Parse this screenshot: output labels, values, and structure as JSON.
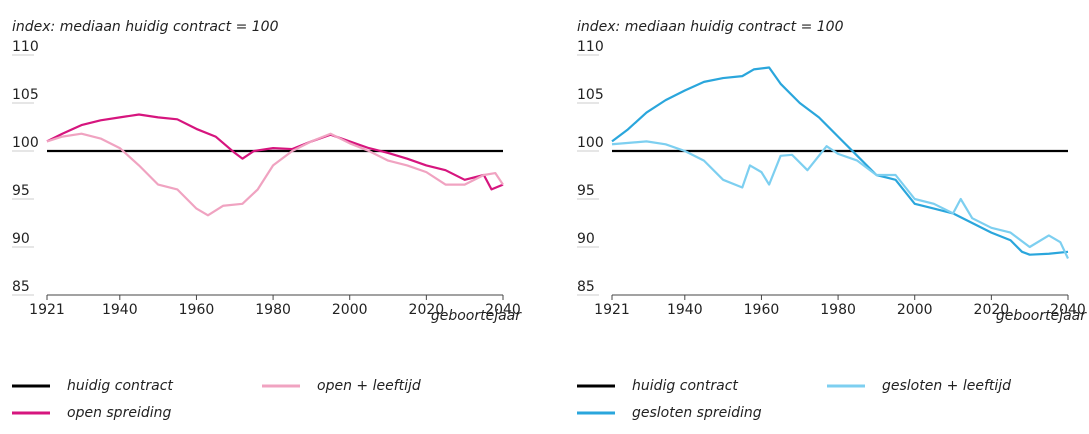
{
  "chart_data": [
    {
      "type": "line",
      "ylabel": "index: mediaan huidig contract = 100",
      "xlabel": "geboortejaar",
      "xlim": [
        1921,
        2040
      ],
      "xticks": [
        1921,
        1940,
        1960,
        1980,
        2000,
        2020,
        2040
      ],
      "ylim": [
        85,
        110
      ],
      "yticks": [
        85,
        90,
        95,
        100,
        105,
        110
      ],
      "grid": false,
      "series": [
        {
          "name": "huidig contract",
          "color": "#000000",
          "x": [
            1921,
            2040
          ],
          "values": [
            100,
            100
          ]
        },
        {
          "name": "open spreiding",
          "color": "#d6157e",
          "x": [
            1921,
            1925,
            1930,
            1935,
            1940,
            1945,
            1950,
            1955,
            1960,
            1965,
            1970,
            1972,
            1975,
            1980,
            1985,
            1990,
            1995,
            2000,
            2005,
            2010,
            2015,
            2020,
            2025,
            2030,
            2035,
            2037,
            2040
          ],
          "values": [
            101,
            101.8,
            102.7,
            103.2,
            103.5,
            103.8,
            103.5,
            103.3,
            102.3,
            101.5,
            99.8,
            99.2,
            100,
            100.3,
            100.2,
            101,
            101.7,
            101,
            100.3,
            99.8,
            99.2,
            98.5,
            98,
            97,
            97.5,
            96,
            96.5
          ]
        },
        {
          "name": "open + leeftijd",
          "color": "#f0a3c1",
          "x": [
            1921,
            1925,
            1930,
            1935,
            1940,
            1945,
            1950,
            1955,
            1960,
            1963,
            1967,
            1972,
            1976,
            1980,
            1985,
            1990,
            1995,
            2000,
            2005,
            2010,
            2015,
            2020,
            2025,
            2030,
            2035,
            2038,
            2040
          ],
          "values": [
            101,
            101.5,
            101.8,
            101.3,
            100.3,
            98.5,
            96.5,
            96,
            94,
            93.3,
            94.3,
            94.5,
            96,
            98.5,
            100,
            101,
            101.8,
            100.8,
            100,
            99,
            98.5,
            97.8,
            96.5,
            96.5,
            97.5,
            97.7,
            96.5
          ]
        }
      ]
    },
    {
      "type": "line",
      "ylabel": "index: mediaan huidig contract = 100",
      "xlabel": "geboortejaar",
      "xlim": [
        1921,
        2040
      ],
      "xticks": [
        1921,
        1940,
        1960,
        1980,
        2000,
        2020,
        2040
      ],
      "ylim": [
        85,
        110
      ],
      "yticks": [
        85,
        90,
        95,
        100,
        105,
        110
      ],
      "grid": false,
      "series": [
        {
          "name": "huidig contract",
          "color": "#000000",
          "x": [
            1921,
            2040
          ],
          "values": [
            100,
            100
          ]
        },
        {
          "name": "gesloten spreiding",
          "color": "#2aa6dc",
          "x": [
            1921,
            1925,
            1930,
            1935,
            1940,
            1945,
            1950,
            1955,
            1958,
            1962,
            1965,
            1970,
            1975,
            1980,
            1985,
            1990,
            1995,
            2000,
            2005,
            2010,
            2015,
            2020,
            2025,
            2028,
            2030,
            2035,
            2040
          ],
          "values": [
            101,
            102.2,
            104,
            105.3,
            106.3,
            107.2,
            107.6,
            107.8,
            108.5,
            108.7,
            107,
            105,
            103.5,
            101.5,
            99.5,
            97.5,
            97,
            94.5,
            94,
            93.5,
            92.5,
            91.5,
            90.7,
            89.5,
            89.2,
            89.3,
            89.5
          ]
        },
        {
          "name": "gesloten + leeftijd",
          "color": "#7dcff0",
          "x": [
            1921,
            1930,
            1935,
            1940,
            1945,
            1950,
            1955,
            1957,
            1960,
            1962,
            1965,
            1968,
            1972,
            1977,
            1980,
            1985,
            1990,
            1995,
            2000,
            2005,
            2010,
            2012,
            2015,
            2020,
            2025,
            2030,
            2035,
            2038,
            2040
          ],
          "values": [
            100.7,
            101,
            100.7,
            100,
            99,
            97,
            96.2,
            98.5,
            97.8,
            96.5,
            99.5,
            99.6,
            98,
            100.5,
            99.7,
            99,
            97.5,
            97.5,
            95,
            94.5,
            93.5,
            95,
            93,
            92,
            91.5,
            90,
            91.2,
            90.5,
            88.8
          ]
        }
      ]
    }
  ]
}
